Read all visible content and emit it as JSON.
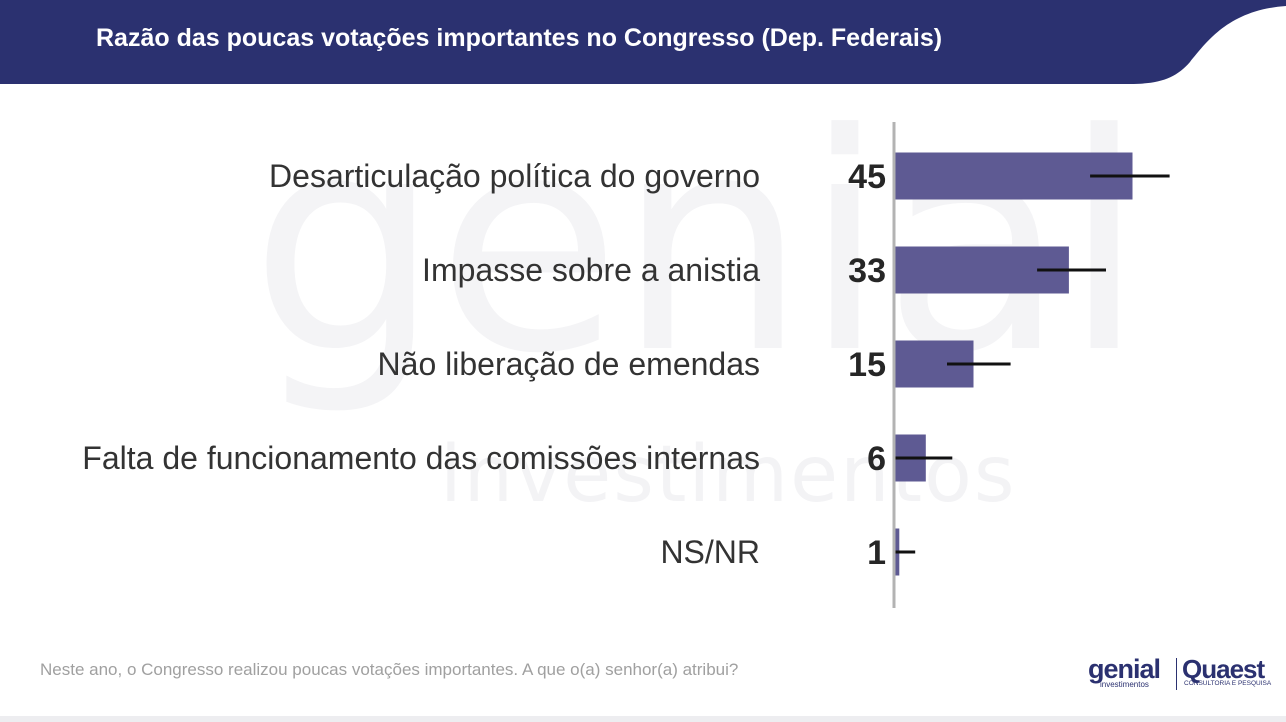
{
  "header": {
    "title": "Razão das poucas votações importantes no Congresso (Dep. Federais)"
  },
  "watermark": {
    "brand": "genial",
    "sub": "investimentos"
  },
  "chart_data": {
    "type": "bar",
    "orientation": "horizontal",
    "title": "Razão das poucas votações importantes no Congresso (Dep. Federais)",
    "categories": [
      "Desarticulação política do governo",
      "Impasse sobre a anistia",
      "Não liberação de emendas",
      "Falta de funcionamento das comissões internas",
      "NS/NR"
    ],
    "values": [
      45,
      33,
      15,
      6,
      1
    ],
    "value_labels": [
      "45",
      "33",
      "15",
      "6",
      "1"
    ],
    "error_bars": [
      {
        "low": 37,
        "high": 52
      },
      {
        "low": 27,
        "high": 40
      },
      {
        "low": 10,
        "high": 22
      },
      {
        "low": 0,
        "high": 11
      },
      {
        "low": 0,
        "high": 4
      }
    ],
    "xlim": [
      0,
      100
    ],
    "grid": false,
    "legend": "none",
    "bar_color": "#5e5a93"
  },
  "footnote": "Neste ano, o Congresso realizou poucas votações importantes. A que o(a) senhor(a) atribui?",
  "logos": {
    "genial": "genial",
    "genial_sub": "investimentos",
    "quaest": "Quaest",
    "quaest_sub": "CONSULTORIA E PESQUISA"
  },
  "colors": {
    "header": "#2b3170",
    "bar": "#5e5a93",
    "axis": "#b3b3b3",
    "error": "#111111"
  }
}
